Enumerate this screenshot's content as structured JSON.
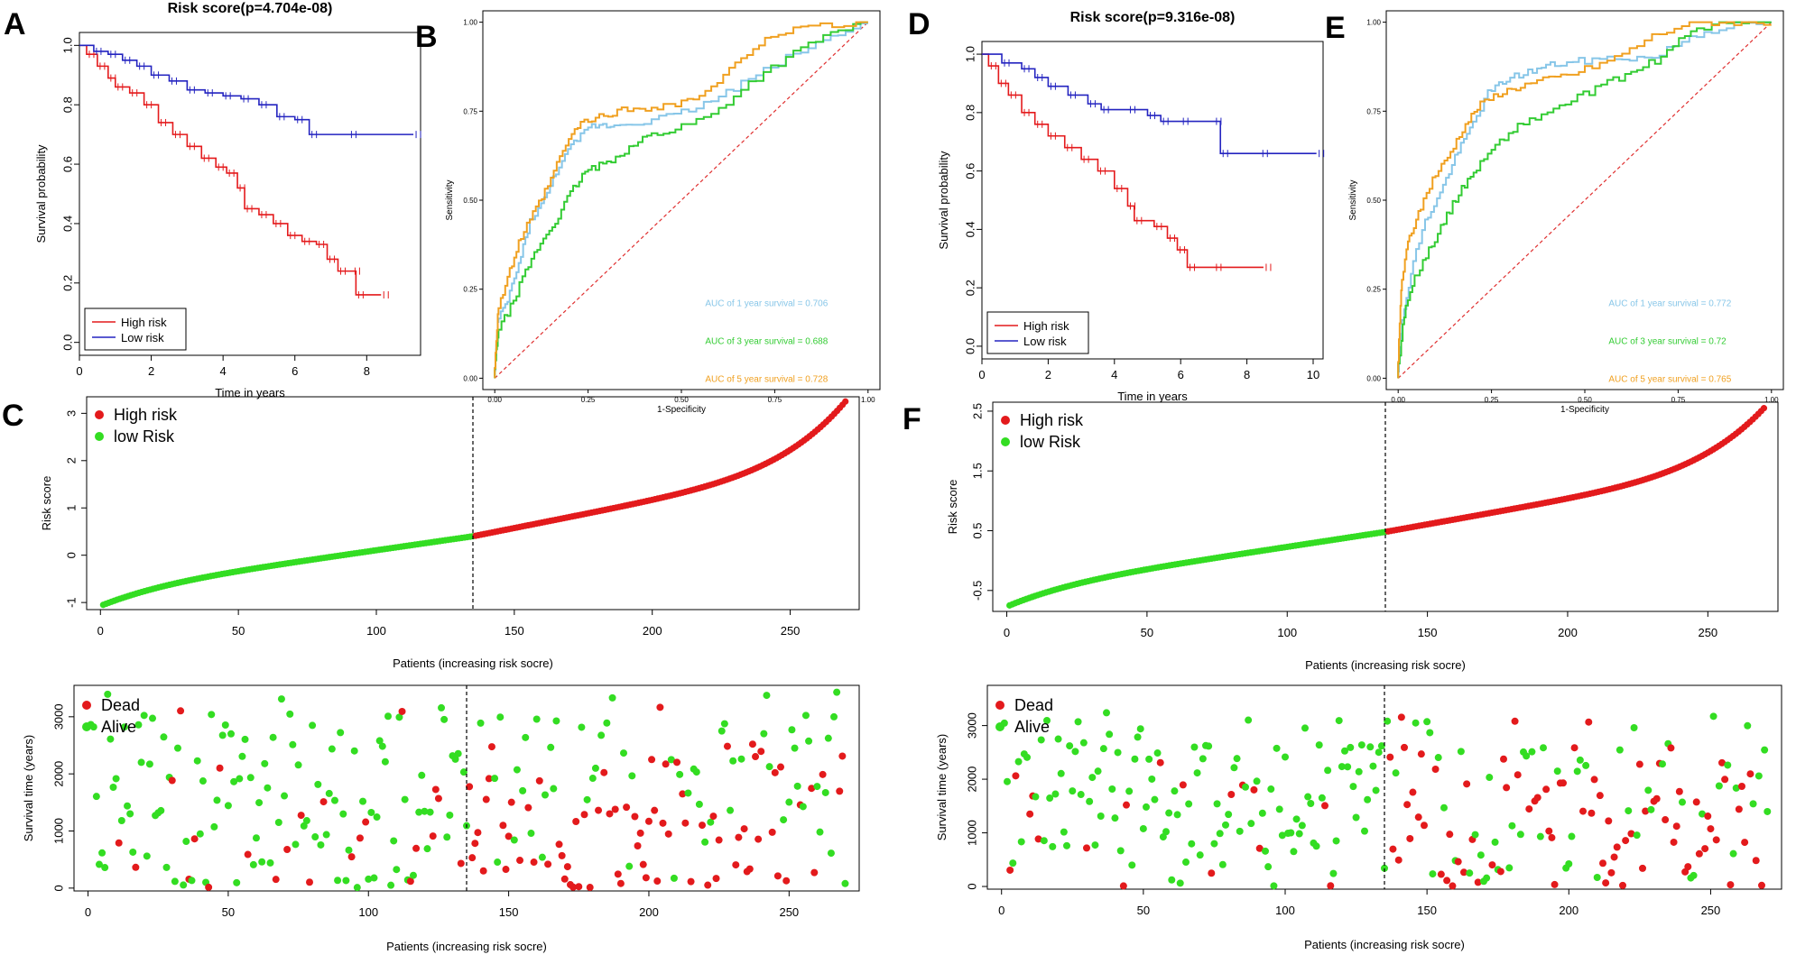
{
  "colors": {
    "high": "#e41a1c",
    "low": "#2424c0",
    "dotHigh": "#e31a1c",
    "dotLow": "#33dd22",
    "auc1": "#87c6e8",
    "auc3": "#33cc33",
    "auc5": "#f0a020",
    "diag": "#e03030"
  },
  "panels": {
    "A": {
      "letter": "A",
      "chart_data": {
        "type": "line",
        "title": "Risk score(p=4.704e-08)",
        "xlabel": "Time in years",
        "ylabel": "Survival probability",
        "xlim": [
          0,
          9.5
        ],
        "ylim": [
          0,
          1
        ],
        "xticks": [
          "0",
          "2",
          "4",
          "6",
          "8"
        ],
        "yticks": [
          "0.0",
          "0.2",
          "0.4",
          "0.6",
          "0.8",
          "1.0"
        ],
        "legend": [
          "High risk",
          "Low risk"
        ],
        "series": [
          {
            "name": "High risk",
            "points": [
              [
                0,
                1
              ],
              [
                0.2,
                0.97
              ],
              [
                0.5,
                0.93
              ],
              [
                0.8,
                0.89
              ],
              [
                1.0,
                0.86
              ],
              [
                1.4,
                0.84
              ],
              [
                1.8,
                0.8
              ],
              [
                2.2,
                0.74
              ],
              [
                2.6,
                0.7
              ],
              [
                3.0,
                0.66
              ],
              [
                3.4,
                0.62
              ],
              [
                3.8,
                0.59
              ],
              [
                4.1,
                0.57
              ],
              [
                4.4,
                0.52
              ],
              [
                4.6,
                0.45
              ],
              [
                5.0,
                0.43
              ],
              [
                5.4,
                0.4
              ],
              [
                5.8,
                0.36
              ],
              [
                6.2,
                0.34
              ],
              [
                6.6,
                0.33
              ],
              [
                6.9,
                0.28
              ],
              [
                7.2,
                0.24
              ],
              [
                7.6,
                0.24
              ],
              [
                7.7,
                0.16
              ],
              [
                8.4,
                0.16
              ]
            ]
          },
          {
            "name": "Low risk",
            "points": [
              [
                0,
                1
              ],
              [
                0.4,
                0.98
              ],
              [
                0.8,
                0.97
              ],
              [
                1.2,
                0.95
              ],
              [
                1.6,
                0.93
              ],
              [
                2.0,
                0.9
              ],
              [
                2.5,
                0.88
              ],
              [
                3.0,
                0.85
              ],
              [
                3.5,
                0.84
              ],
              [
                4.0,
                0.83
              ],
              [
                4.5,
                0.82
              ],
              [
                5.0,
                0.8
              ],
              [
                5.5,
                0.76
              ],
              [
                6.0,
                0.75
              ],
              [
                6.4,
                0.7
              ],
              [
                7.5,
                0.7
              ],
              [
                9.3,
                0.7
              ]
            ]
          }
        ]
      }
    },
    "B": {
      "letter": "B",
      "chart_data": {
        "type": "line",
        "xlabel": "1-Specificity",
        "ylabel": "Sensitivity",
        "xlim": [
          0,
          1
        ],
        "ylim": [
          0,
          1
        ],
        "xticks": [
          "0.00",
          "0.25",
          "0.50",
          "0.75",
          "1.00"
        ],
        "yticks": [
          "0.00",
          "0.25",
          "0.50",
          "0.75",
          "1.00"
        ],
        "annotations": [
          "AUC of 1 year survival =  0.706",
          "AUC of 3 year survival =  0.688",
          "AUC of 5 year survival =  0.728"
        ],
        "series": [
          {
            "name": "1 year",
            "points": [
              [
                0,
                0
              ],
              [
                0.01,
                0.15
              ],
              [
                0.04,
                0.22
              ],
              [
                0.07,
                0.32
              ],
              [
                0.1,
                0.44
              ],
              [
                0.14,
                0.5
              ],
              [
                0.18,
                0.6
              ],
              [
                0.22,
                0.66
              ],
              [
                0.27,
                0.71
              ],
              [
                0.32,
                0.71
              ],
              [
                0.4,
                0.72
              ],
              [
                0.5,
                0.74
              ],
              [
                0.6,
                0.78
              ],
              [
                0.7,
                0.84
              ],
              [
                0.8,
                0.9
              ],
              [
                0.9,
                0.95
              ],
              [
                1,
                1
              ]
            ]
          },
          {
            "name": "3 year",
            "points": [
              [
                0,
                0
              ],
              [
                0.01,
                0.12
              ],
              [
                0.05,
                0.2
              ],
              [
                0.09,
                0.3
              ],
              [
                0.13,
                0.38
              ],
              [
                0.17,
                0.44
              ],
              [
                0.21,
                0.52
              ],
              [
                0.25,
                0.58
              ],
              [
                0.3,
                0.6
              ],
              [
                0.36,
                0.64
              ],
              [
                0.42,
                0.68
              ],
              [
                0.5,
                0.7
              ],
              [
                0.6,
                0.74
              ],
              [
                0.7,
                0.83
              ],
              [
                0.8,
                0.9
              ],
              [
                0.9,
                0.96
              ],
              [
                1,
                1
              ]
            ]
          },
          {
            "name": "5 year",
            "points": [
              [
                0,
                0
              ],
              [
                0.01,
                0.18
              ],
              [
                0.04,
                0.28
              ],
              [
                0.07,
                0.38
              ],
              [
                0.11,
                0.46
              ],
              [
                0.15,
                0.54
              ],
              [
                0.19,
                0.64
              ],
              [
                0.23,
                0.71
              ],
              [
                0.28,
                0.73
              ],
              [
                0.34,
                0.75
              ],
              [
                0.42,
                0.76
              ],
              [
                0.5,
                0.77
              ],
              [
                0.58,
                0.8
              ],
              [
                0.66,
                0.88
              ],
              [
                0.74,
                0.96
              ],
              [
                0.84,
                0.98
              ],
              [
                1,
                1
              ]
            ]
          }
        ]
      }
    },
    "C": {
      "letter": "C",
      "chart_data": {
        "type": "scatter",
        "xlabel": "Patients (increasing risk socre)",
        "ylabel": "Risk score",
        "xlim": [
          -5,
          275
        ],
        "ylim": [
          -1.15,
          3.35
        ],
        "xticks": [
          "0",
          "50",
          "100",
          "150",
          "200",
          "250"
        ],
        "yticks": [
          "-1",
          "0",
          "1",
          "2",
          "3"
        ],
        "legend": [
          "High risk",
          "low Risk"
        ],
        "n": 270,
        "cutoff": 135,
        "min": -1.05,
        "split": 0.4,
        "max": 3.25
      }
    },
    "C2": {
      "chart_data": {
        "type": "scatter",
        "xlabel": "Patients (increasing risk socre)",
        "ylabel": "Survival time (years)",
        "xlim": [
          -5,
          275
        ],
        "ylim": [
          -50,
          3550
        ],
        "xticks": [
          "0",
          "50",
          "100",
          "150",
          "200",
          "250"
        ],
        "yticks": [
          "0",
          "1000",
          "2000",
          "3000"
        ],
        "legend": [
          "Dead",
          "Alive"
        ],
        "n": 270,
        "cutoff": 135,
        "seed": 17
      }
    },
    "D": {
      "letter": "D",
      "chart_data": {
        "type": "line",
        "title": "Risk score(p=9.316e-08)",
        "xlabel": "Time in years",
        "ylabel": "Survival probability",
        "xlim": [
          0,
          10.3
        ],
        "ylim": [
          0,
          1
        ],
        "xticks": [
          "0",
          "2",
          "4",
          "6",
          "8",
          "10"
        ],
        "yticks": [
          "0.0",
          "0.2",
          "0.4",
          "0.6",
          "0.8",
          "1.0"
        ],
        "legend": [
          "High risk",
          "Low risk"
        ],
        "series": [
          {
            "name": "High risk",
            "points": [
              [
                0,
                1
              ],
              [
                0.2,
                0.96
              ],
              [
                0.5,
                0.9
              ],
              [
                0.8,
                0.86
              ],
              [
                1.2,
                0.8
              ],
              [
                1.6,
                0.76
              ],
              [
                2.0,
                0.72
              ],
              [
                2.5,
                0.68
              ],
              [
                3.0,
                0.64
              ],
              [
                3.5,
                0.6
              ],
              [
                4.0,
                0.54
              ],
              [
                4.4,
                0.48
              ],
              [
                4.6,
                0.43
              ],
              [
                5.2,
                0.41
              ],
              [
                5.6,
                0.37
              ],
              [
                5.9,
                0.33
              ],
              [
                6.2,
                0.27
              ],
              [
                7.0,
                0.27
              ],
              [
                8.5,
                0.27
              ]
            ]
          },
          {
            "name": "Low risk",
            "points": [
              [
                0,
                1
              ],
              [
                0.6,
                0.97
              ],
              [
                1.2,
                0.95
              ],
              [
                1.6,
                0.92
              ],
              [
                2.0,
                0.89
              ],
              [
                2.6,
                0.86
              ],
              [
                3.2,
                0.83
              ],
              [
                3.6,
                0.81
              ],
              [
                4.4,
                0.81
              ],
              [
                5.0,
                0.79
              ],
              [
                5.4,
                0.77
              ],
              [
                6.0,
                0.77
              ],
              [
                7.0,
                0.77
              ],
              [
                7.2,
                0.66
              ],
              [
                8.4,
                0.66
              ],
              [
                10.1,
                0.66
              ]
            ]
          }
        ]
      }
    },
    "E": {
      "letter": "E",
      "chart_data": {
        "type": "line",
        "xlabel": "1-Specificity",
        "ylabel": "Sensitivity",
        "xlim": [
          0,
          1
        ],
        "ylim": [
          0,
          1
        ],
        "xticks": [
          "0.00",
          "0.25",
          "0.50",
          "0.75",
          "1.00"
        ],
        "yticks": [
          "0.00",
          "0.25",
          "0.50",
          "0.75",
          "1.00"
        ],
        "annotations": [
          "AUC of 1 year survival =  0.772",
          "AUC of 3 year survival =  0.72",
          "AUC of 5 year survival =  0.765"
        ],
        "series": [
          {
            "name": "1 year",
            "points": [
              [
                0,
                0
              ],
              [
                0.01,
                0.12
              ],
              [
                0.04,
                0.3
              ],
              [
                0.08,
                0.44
              ],
              [
                0.12,
                0.52
              ],
              [
                0.16,
                0.62
              ],
              [
                0.2,
                0.7
              ],
              [
                0.25,
                0.8
              ],
              [
                0.3,
                0.84
              ],
              [
                0.36,
                0.86
              ],
              [
                0.42,
                0.88
              ],
              [
                0.5,
                0.89
              ],
              [
                0.6,
                0.9
              ],
              [
                0.7,
                0.9
              ],
              [
                0.8,
                0.96
              ],
              [
                0.9,
                0.99
              ],
              [
                1,
                1
              ]
            ]
          },
          {
            "name": "3 year",
            "points": [
              [
                0,
                0
              ],
              [
                0.02,
                0.18
              ],
              [
                0.05,
                0.28
              ],
              [
                0.09,
                0.36
              ],
              [
                0.13,
                0.44
              ],
              [
                0.17,
                0.52
              ],
              [
                0.21,
                0.58
              ],
              [
                0.26,
                0.64
              ],
              [
                0.32,
                0.7
              ],
              [
                0.4,
                0.74
              ],
              [
                0.48,
                0.78
              ],
              [
                0.56,
                0.82
              ],
              [
                0.64,
                0.86
              ],
              [
                0.72,
                0.9
              ],
              [
                0.8,
                0.98
              ],
              [
                0.9,
                1
              ],
              [
                1,
                1
              ]
            ]
          },
          {
            "name": "5 year",
            "points": [
              [
                0,
                0
              ],
              [
                0.01,
                0.25
              ],
              [
                0.03,
                0.38
              ],
              [
                0.06,
                0.46
              ],
              [
                0.1,
                0.56
              ],
              [
                0.14,
                0.62
              ],
              [
                0.18,
                0.7
              ],
              [
                0.22,
                0.76
              ],
              [
                0.28,
                0.8
              ],
              [
                0.34,
                0.82
              ],
              [
                0.42,
                0.84
              ],
              [
                0.5,
                0.86
              ],
              [
                0.6,
                0.9
              ],
              [
                0.7,
                0.96
              ],
              [
                0.8,
                1
              ],
              [
                0.9,
                1
              ],
              [
                1,
                1
              ]
            ]
          }
        ]
      }
    },
    "F": {
      "letter": "F",
      "chart_data": {
        "type": "scatter",
        "xlabel": "Patients (increasing risk socre)",
        "ylabel": "Risk score",
        "xlim": [
          -5,
          275
        ],
        "ylim": [
          -0.85,
          2.65
        ],
        "xticks": [
          "0",
          "50",
          "100",
          "150",
          "200",
          "250"
        ],
        "yticks": [
          "-0.5",
          "0.5",
          "1.5",
          "2.5"
        ],
        "legend": [
          "High risk",
          "low Risk"
        ],
        "n": 270,
        "cutoff": 135,
        "min": -0.75,
        "split": 0.48,
        "max": 2.55
      }
    },
    "F2": {
      "chart_data": {
        "type": "scatter",
        "xlabel": "Patients (increasing risk socre)",
        "ylabel": "Survival time (years)",
        "xlim": [
          -5,
          275
        ],
        "ylim": [
          -50,
          3750
        ],
        "xticks": [
          "0",
          "50",
          "100",
          "150",
          "200",
          "250"
        ],
        "yticks": [
          "0",
          "1000",
          "2000",
          "3000"
        ],
        "legend": [
          "Dead",
          "Alive"
        ],
        "n": 270,
        "cutoff": 135,
        "seed": 41
      }
    }
  }
}
